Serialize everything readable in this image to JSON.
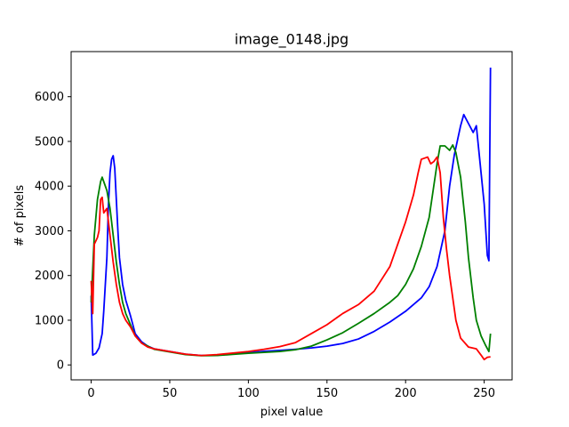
{
  "chart_data": {
    "type": "line",
    "title": "image_0148.jpg",
    "xlabel": "pixel value",
    "ylabel": "# of pixels",
    "xlim": [
      -12.75,
      267.75
    ],
    "ylim": [
      -334,
      7009
    ],
    "xticks": [
      0,
      50,
      100,
      150,
      200,
      250
    ],
    "yticks": [
      0,
      1000,
      2000,
      3000,
      4000,
      5000,
      6000
    ],
    "grid": false,
    "legend": "none",
    "series": [
      {
        "color": "#0000ff",
        "points": [
          [
            0,
            1550
          ],
          [
            1,
            220
          ],
          [
            3,
            260
          ],
          [
            5,
            380
          ],
          [
            7,
            700
          ],
          [
            8,
            1200
          ],
          [
            10,
            2400
          ],
          [
            11,
            3600
          ],
          [
            12,
            4300
          ],
          [
            13,
            4600
          ],
          [
            14,
            4680
          ],
          [
            15,
            4400
          ],
          [
            16,
            3700
          ],
          [
            17,
            3000
          ],
          [
            18,
            2400
          ],
          [
            20,
            1800
          ],
          [
            22,
            1450
          ],
          [
            25,
            1100
          ],
          [
            28,
            700
          ],
          [
            32,
            520
          ],
          [
            36,
            420
          ],
          [
            40,
            360
          ],
          [
            50,
            300
          ],
          [
            60,
            240
          ],
          [
            70,
            210
          ],
          [
            80,
            215
          ],
          [
            90,
            245
          ],
          [
            100,
            275
          ],
          [
            110,
            305
          ],
          [
            120,
            325
          ],
          [
            130,
            350
          ],
          [
            140,
            380
          ],
          [
            150,
            420
          ],
          [
            160,
            480
          ],
          [
            170,
            580
          ],
          [
            180,
            750
          ],
          [
            190,
            960
          ],
          [
            200,
            1200
          ],
          [
            210,
            1500
          ],
          [
            215,
            1750
          ],
          [
            220,
            2200
          ],
          [
            225,
            3000
          ],
          [
            228,
            4000
          ],
          [
            231,
            4700
          ],
          [
            235,
            5350
          ],
          [
            237,
            5600
          ],
          [
            240,
            5400
          ],
          [
            243,
            5200
          ],
          [
            245,
            5350
          ],
          [
            248,
            4300
          ],
          [
            250,
            3600
          ],
          [
            252,
            2450
          ],
          [
            253,
            2330
          ],
          [
            254,
            6650
          ]
        ]
      },
      {
        "color": "#008000",
        "points": [
          [
            0,
            1400
          ],
          [
            2,
            2900
          ],
          [
            4,
            3700
          ],
          [
            6,
            4100
          ],
          [
            7,
            4200
          ],
          [
            8,
            4100
          ],
          [
            10,
            3900
          ],
          [
            12,
            3500
          ],
          [
            14,
            2900
          ],
          [
            16,
            2300
          ],
          [
            18,
            1800
          ],
          [
            20,
            1400
          ],
          [
            22,
            1150
          ],
          [
            25,
            900
          ],
          [
            28,
            650
          ],
          [
            32,
            490
          ],
          [
            36,
            420
          ],
          [
            40,
            350
          ],
          [
            50,
            290
          ],
          [
            60,
            230
          ],
          [
            70,
            205
          ],
          [
            80,
            210
          ],
          [
            90,
            235
          ],
          [
            100,
            260
          ],
          [
            110,
            280
          ],
          [
            120,
            300
          ],
          [
            130,
            340
          ],
          [
            140,
            420
          ],
          [
            150,
            560
          ],
          [
            160,
            720
          ],
          [
            170,
            930
          ],
          [
            180,
            1150
          ],
          [
            190,
            1400
          ],
          [
            195,
            1550
          ],
          [
            200,
            1800
          ],
          [
            205,
            2150
          ],
          [
            210,
            2650
          ],
          [
            215,
            3300
          ],
          [
            220,
            4500
          ],
          [
            222,
            4900
          ],
          [
            225,
            4900
          ],
          [
            228,
            4800
          ],
          [
            230,
            4920
          ],
          [
            232,
            4750
          ],
          [
            235,
            4200
          ],
          [
            238,
            3200
          ],
          [
            240,
            2400
          ],
          [
            243,
            1500
          ],
          [
            245,
            1000
          ],
          [
            248,
            650
          ],
          [
            251,
            430
          ],
          [
            253,
            300
          ],
          [
            254,
            700
          ]
        ]
      },
      {
        "color": "#ff0000",
        "points": [
          [
            0,
            1880
          ],
          [
            1,
            1150
          ],
          [
            2,
            2700
          ],
          [
            4,
            2850
          ],
          [
            5,
            3000
          ],
          [
            6,
            3700
          ],
          [
            7,
            3750
          ],
          [
            8,
            3400
          ],
          [
            10,
            3500
          ],
          [
            12,
            2900
          ],
          [
            14,
            2300
          ],
          [
            16,
            1800
          ],
          [
            18,
            1400
          ],
          [
            20,
            1150
          ],
          [
            22,
            1000
          ],
          [
            25,
            850
          ],
          [
            28,
            650
          ],
          [
            32,
            490
          ],
          [
            36,
            400
          ],
          [
            40,
            360
          ],
          [
            50,
            300
          ],
          [
            60,
            240
          ],
          [
            70,
            210
          ],
          [
            80,
            230
          ],
          [
            90,
            265
          ],
          [
            100,
            300
          ],
          [
            110,
            350
          ],
          [
            120,
            410
          ],
          [
            130,
            500
          ],
          [
            140,
            700
          ],
          [
            150,
            900
          ],
          [
            160,
            1150
          ],
          [
            170,
            1350
          ],
          [
            180,
            1650
          ],
          [
            190,
            2200
          ],
          [
            195,
            2700
          ],
          [
            200,
            3200
          ],
          [
            205,
            3800
          ],
          [
            208,
            4300
          ],
          [
            210,
            4600
          ],
          [
            214,
            4650
          ],
          [
            216,
            4500
          ],
          [
            218,
            4550
          ],
          [
            220,
            4650
          ],
          [
            222,
            4300
          ],
          [
            224,
            3300
          ],
          [
            226,
            2600
          ],
          [
            228,
            2000
          ],
          [
            230,
            1500
          ],
          [
            232,
            1000
          ],
          [
            235,
            600
          ],
          [
            240,
            400
          ],
          [
            245,
            360
          ],
          [
            248,
            220
          ],
          [
            250,
            120
          ],
          [
            252,
            170
          ],
          [
            254,
            180
          ]
        ]
      }
    ]
  }
}
